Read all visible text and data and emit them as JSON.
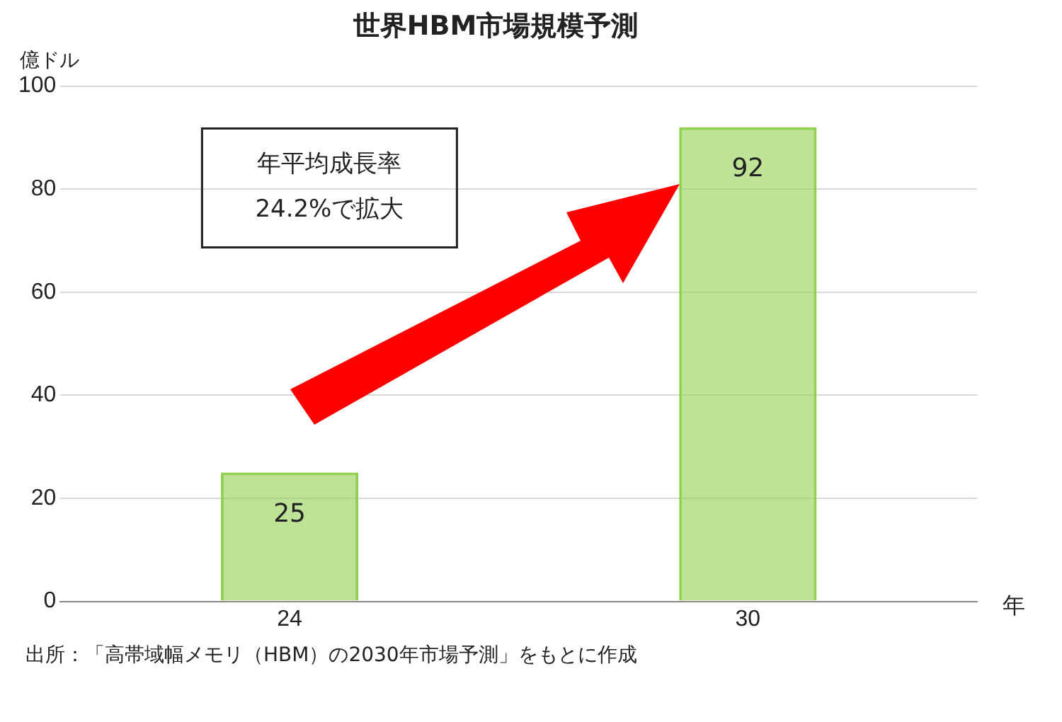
{
  "chart_data": {
    "type": "bar",
    "title": "世界HBM市場規模予測",
    "ylabel": "億ドル",
    "xlabel": "年",
    "categories": [
      "24",
      "30"
    ],
    "values": [
      25,
      92
    ],
    "color": "#92d050",
    "ylim": [
      0,
      100
    ],
    "yticks": [
      0,
      20,
      40,
      60,
      80,
      100
    ],
    "grid": "y",
    "legend": false,
    "data_labels": true,
    "annotations": [
      "年平均成長率\n24.2%で拡大",
      "出所：「高帯域幅メモリ（HBM）の2030年市場予測」をもとに作成"
    ]
  }
}
